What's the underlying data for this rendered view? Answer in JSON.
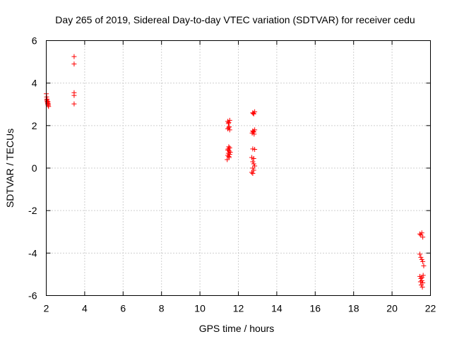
{
  "chart_data": {
    "type": "scatter",
    "title": "Day 265 of 2019, Sidereal Day-to-day VTEC variation (SDTVAR) for receiver cedu",
    "xlabel": "GPS time / hours",
    "ylabel": "SDTVAR / TECUs",
    "xlim": [
      2,
      22
    ],
    "ylim": [
      -6,
      6
    ],
    "xticks": [
      2,
      4,
      6,
      8,
      10,
      12,
      14,
      16,
      18,
      20,
      22
    ],
    "yticks": [
      -6,
      -4,
      -2,
      0,
      2,
      4,
      6
    ],
    "grid": true,
    "marker": "+",
    "color": "#ff0000",
    "series": [
      {
        "name": "SDTVAR",
        "points": [
          [
            2.0,
            3.5
          ],
          [
            2.02,
            3.35
          ],
          [
            2.04,
            3.25
          ],
          [
            2.05,
            3.15
          ],
          [
            2.06,
            3.1
          ],
          [
            2.07,
            3.05
          ],
          [
            2.08,
            3.0
          ],
          [
            2.1,
            2.95
          ],
          [
            2.12,
            2.9
          ],
          [
            2.03,
            3.2
          ],
          [
            2.09,
            3.12
          ],
          [
            2.11,
            3.02
          ],
          [
            3.45,
            5.25
          ],
          [
            3.45,
            4.9
          ],
          [
            3.45,
            3.55
          ],
          [
            3.45,
            3.42
          ],
          [
            3.45,
            3.02
          ],
          [
            11.45,
            2.2
          ],
          [
            11.5,
            2.15
          ],
          [
            11.55,
            2.25
          ],
          [
            11.48,
            2.1
          ],
          [
            11.52,
            1.95
          ],
          [
            11.45,
            1.85
          ],
          [
            11.55,
            1.8
          ],
          [
            11.5,
            1.9
          ],
          [
            11.5,
            1.0
          ],
          [
            11.55,
            0.95
          ],
          [
            11.45,
            0.85
          ],
          [
            11.52,
            0.8
          ],
          [
            11.48,
            0.7
          ],
          [
            11.55,
            0.65
          ],
          [
            11.45,
            0.6
          ],
          [
            11.5,
            0.55
          ],
          [
            11.52,
            0.5
          ],
          [
            11.42,
            0.4
          ],
          [
            11.58,
            0.75
          ],
          [
            11.47,
            0.9
          ],
          [
            12.75,
            2.6
          ],
          [
            12.8,
            2.55
          ],
          [
            12.85,
            2.65
          ],
          [
            12.78,
            2.58
          ],
          [
            12.75,
            1.75
          ],
          [
            12.8,
            1.7
          ],
          [
            12.85,
            1.8
          ],
          [
            12.72,
            1.65
          ],
          [
            12.82,
            1.6
          ],
          [
            12.78,
            1.72
          ],
          [
            12.75,
            0.9
          ],
          [
            12.85,
            0.88
          ],
          [
            12.7,
            0.5
          ],
          [
            12.8,
            0.45
          ],
          [
            12.75,
            0.3
          ],
          [
            12.8,
            0.2
          ],
          [
            12.85,
            0.1
          ],
          [
            12.75,
            0.0
          ],
          [
            12.8,
            -0.1
          ],
          [
            12.7,
            -0.2
          ],
          [
            12.75,
            -0.25
          ],
          [
            21.45,
            -3.1
          ],
          [
            21.5,
            -3.15
          ],
          [
            21.55,
            -3.05
          ],
          [
            21.6,
            -3.25
          ],
          [
            21.45,
            -4.05
          ],
          [
            21.5,
            -4.2
          ],
          [
            21.55,
            -4.3
          ],
          [
            21.6,
            -4.4
          ],
          [
            21.65,
            -4.6
          ],
          [
            21.45,
            -5.1
          ],
          [
            21.5,
            -5.2
          ],
          [
            21.55,
            -5.3
          ],
          [
            21.6,
            -5.4
          ],
          [
            21.52,
            -5.5
          ],
          [
            21.58,
            -5.6
          ],
          [
            21.48,
            -5.35
          ],
          [
            21.56,
            -5.15
          ],
          [
            21.62,
            -5.05
          ]
        ]
      }
    ]
  }
}
